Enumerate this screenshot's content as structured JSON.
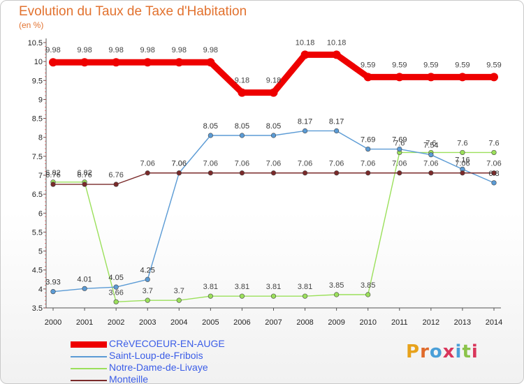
{
  "title": "Evolution du Taux de Taxe d'Habitation",
  "subtitle": "(en %)",
  "chart_data": {
    "type": "line",
    "x": [
      "2000",
      "2001",
      "2002",
      "2003",
      "2004",
      "2005",
      "2006",
      "2007",
      "2008",
      "2009",
      "2010",
      "2011",
      "2012",
      "2013",
      "2014"
    ],
    "ylim": [
      3.5,
      10.5
    ],
    "yticks": [
      "3.5",
      "4",
      "4.5",
      "5",
      "5.5",
      "6",
      "6.5",
      "7",
      "7.5",
      "8",
      "8.5",
      "9",
      "9.5",
      "10",
      "10.5"
    ],
    "grid": false,
    "legend_position": "bottom-left",
    "series": [
      {
        "name": "CRèVECOEUR-EN-AUGE",
        "color": "#ee0000",
        "values": [
          9.98,
          9.98,
          9.98,
          9.98,
          9.98,
          9.98,
          9.18,
          9.18,
          10.18,
          10.18,
          9.59,
          9.59,
          9.59,
          9.59,
          9.59
        ],
        "labels": [
          "9.98",
          "9.98",
          "9.98",
          "9.98",
          "9.98",
          "9.98",
          "9.18",
          "9.18",
          "10.18",
          "10.18",
          "9.59",
          "9.59",
          "9.59",
          "9.59",
          "9.59"
        ]
      },
      {
        "name": "Saint-Loup-de-Fribois",
        "color": "#5b9bd5",
        "values": [
          3.93,
          4.01,
          4.05,
          4.25,
          7.06,
          8.05,
          8.05,
          8.05,
          8.17,
          8.17,
          7.69,
          7.69,
          7.54,
          7.16,
          6.8
        ],
        "labels": [
          "3.93",
          "4.01",
          "4.05",
          "4.25",
          "7.06",
          "8.05",
          "8.05",
          "8.05",
          "8.17",
          "8.17",
          "7.69",
          "7.69",
          "7.54",
          "7.16",
          "6.8"
        ]
      },
      {
        "name": "Notre-Dame-de-Livaye",
        "color": "#9be05b",
        "values": [
          6.82,
          6.82,
          3.66,
          3.7,
          3.7,
          3.81,
          3.81,
          3.81,
          3.81,
          3.85,
          3.85,
          7.6,
          7.6,
          7.6,
          7.6
        ],
        "labels": [
          "6.82",
          "6.82",
          "3.66",
          "3.7",
          "3.7",
          "3.81",
          "3.81",
          "3.81",
          "3.81",
          "3.85",
          "3.85",
          "7.6",
          "7.6",
          "7.6",
          "7.6"
        ]
      },
      {
        "name": "Monteille",
        "color": "#7a2a2a",
        "values": [
          6.76,
          6.76,
          6.76,
          7.06,
          7.06,
          7.06,
          7.06,
          7.06,
          7.06,
          7.06,
          7.06,
          7.06,
          7.06,
          7.06,
          7.06
        ],
        "labels": [
          "6.76",
          "6.76",
          "6.76",
          "7.06",
          "7.06",
          "7.06",
          "7.06",
          "7.06",
          "7.06",
          "7.06",
          "7.06",
          "7.06",
          "7.06",
          "7.06",
          "7.06"
        ]
      }
    ]
  },
  "logo": {
    "text": "Proxiti",
    "colors": [
      "#e7a21b",
      "#e06a2b",
      "#4a9fd8",
      "#d9365b",
      "#4a9fd8",
      "#8bc34a",
      "#d9365b"
    ]
  }
}
